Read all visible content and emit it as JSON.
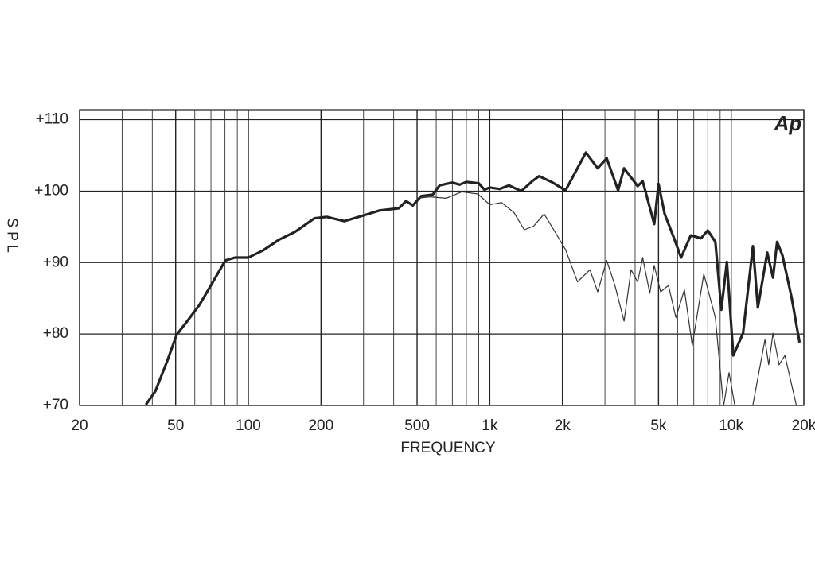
{
  "chart_data": {
    "type": "line",
    "logo": "Ap",
    "x_label": "FREQUENCY",
    "y_label": "S P L",
    "x_log": true,
    "xlim": [
      20,
      20000
    ],
    "ylim": [
      70,
      111.4
    ],
    "xticks": [
      20,
      50,
      100,
      200,
      500,
      {
        "value": 1000,
        "label": "1k"
      },
      {
        "value": 2000,
        "label": "2k"
      },
      {
        "value": 5000,
        "label": "5k"
      },
      {
        "value": 10000,
        "label": "10k"
      },
      {
        "value": 20000,
        "label": "20k"
      }
    ],
    "x_minor_ticks": [
      30,
      40,
      60,
      70,
      80,
      90,
      300,
      400,
      600,
      700,
      800,
      900,
      3000,
      4000,
      6000,
      7000,
      8000,
      9000
    ],
    "yticks": [
      {
        "value": 70,
        "label": "+70"
      },
      {
        "value": 80,
        "label": "+80"
      },
      {
        "value": 90,
        "label": "+90"
      },
      {
        "value": 100,
        "label": "+100"
      },
      {
        "value": 110,
        "label": "+110"
      }
    ],
    "grid": true,
    "series": [
      {
        "color": "#222222",
        "width": 3.2,
        "x": [
          37.6,
          41.2,
          46.1,
          50.5,
          55.8,
          62.5,
          70,
          80.3,
          88,
          100,
          115,
          134,
          156,
          188,
          211,
          250,
          300,
          350,
          420,
          450,
          480,
          520,
          580,
          620,
          700,
          750,
          800,
          900,
          950,
          1000,
          1100,
          1200,
          1350,
          1500,
          1600,
          1800,
          2060,
          2500,
          2800,
          3050,
          3400,
          3600,
          4100,
          4300,
          4800,
          5000,
          5300,
          5800,
          6200,
          6800,
          7500,
          8000,
          8600,
          9100,
          9600,
          10200,
          11200,
          12300,
          12900,
          14100,
          14900,
          15500,
          16300,
          17800,
          19200
        ],
        "values": [
          70.1,
          72.0,
          76.2,
          79.9,
          81.8,
          84.0,
          86.8,
          90.3,
          90.7,
          90.7,
          91.7,
          93.2,
          94.3,
          96.2,
          96.4,
          95.8,
          96.6,
          97.3,
          97.6,
          98.6,
          98.0,
          99.3,
          99.5,
          100.8,
          101.2,
          100.9,
          101.3,
          101.1,
          100.2,
          100.5,
          100.3,
          100.8,
          100.0,
          101.4,
          102.1,
          101.3,
          100.1,
          105.4,
          103.2,
          104.6,
          100.1,
          103.2,
          100.7,
          101.4,
          95.4,
          101.0,
          96.8,
          93.4,
          90.7,
          93.8,
          93.4,
          94.5,
          92.9,
          83.4,
          90.1,
          77.0,
          80.1,
          92.3,
          83.7,
          91.4,
          87.9,
          92.9,
          91.0,
          85.1,
          78.8
        ]
      },
      {
        "color": "#333333",
        "width": 1.2,
        "x": [
          500,
          566,
          660,
          766,
          893,
          1000,
          1120,
          1260,
          1390,
          1520,
          1680,
          1840,
          2060,
          2310,
          2600,
          2800,
          3050,
          3300,
          3600,
          3850,
          4100,
          4300,
          4600,
          4800,
          5100,
          5500,
          5900,
          6400,
          6900,
          7700,
          8600,
          9300,
          9800,
          10400,
          11300,
          12300,
          13800,
          14300,
          14900,
          15800,
          16700,
          18600
        ],
        "values": [
          99.0,
          99.2,
          99.0,
          99.9,
          99.6,
          98.1,
          98.4,
          97.0,
          94.6,
          95.1,
          96.8,
          94.6,
          91.8,
          87.3,
          89.0,
          85.9,
          90.3,
          86.8,
          81.8,
          89.0,
          87.3,
          90.7,
          85.7,
          89.6,
          85.9,
          86.8,
          82.3,
          86.2,
          78.4,
          88.4,
          82.3,
          69.9,
          74.6,
          69.6,
          null,
          70.1,
          79.2,
          75.7,
          80.1,
          75.7,
          77.0,
          70.1
        ]
      }
    ]
  }
}
